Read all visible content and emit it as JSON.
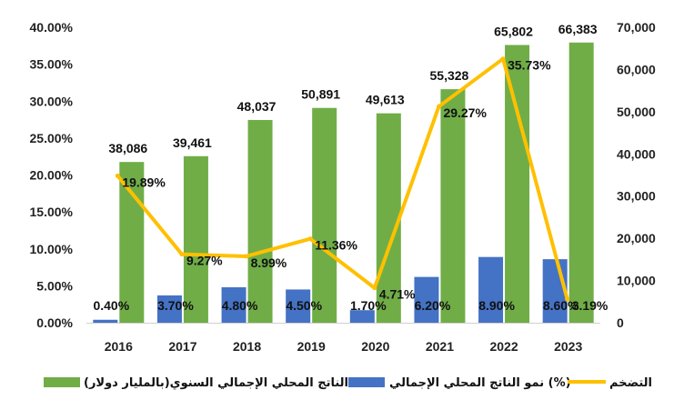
{
  "chart_data": {
    "type": "bar",
    "categories": [
      "2016",
      "2017",
      "2018",
      "2019",
      "2020",
      "2021",
      "2022",
      "2023"
    ],
    "series": [
      {
        "name": "الناتج المحلي الإجمالي السنوي(بالمليار دولار)",
        "type": "bar",
        "axis": "right",
        "color": "#70AD47",
        "values": [
          38086,
          39461,
          48037,
          50891,
          49613,
          55328,
          65802,
          66383
        ],
        "labels": [
          "38,086",
          "39,461",
          "48,037",
          "50,891",
          "49,613",
          "55,328",
          "65,802",
          "66,383"
        ]
      },
      {
        "name": "نمو الناتج المحلي الإجمالي (%)",
        "type": "bar",
        "axis": "left",
        "color": "#4472C4",
        "values": [
          0.4,
          3.7,
          4.8,
          4.5,
          1.7,
          6.2,
          8.9,
          8.6
        ],
        "labels": [
          "0.40%",
          "3.70%",
          "4.80%",
          "4.50%",
          "1.70%",
          "6.20%",
          "8.90%",
          "8.60%"
        ]
      },
      {
        "name": "التضخم",
        "type": "line",
        "axis": "left",
        "color": "#FFC000",
        "values": [
          19.89,
          9.27,
          8.99,
          11.36,
          4.71,
          29.27,
          35.73,
          3.19
        ],
        "labels": [
          "19.89%",
          "9.27%",
          "8.99%",
          "11.36%",
          "4.71%",
          "29.27%",
          "35.73%",
          "3.19%"
        ]
      }
    ],
    "y_left": {
      "lim": [
        0,
        40
      ],
      "ticks": [
        "0.00%",
        "5.00%",
        "10.00%",
        "15.00%",
        "20.00%",
        "25.00%",
        "30.00%",
        "35.00%",
        "40.00%"
      ]
    },
    "y_right": {
      "lim": [
        0,
        70000
      ],
      "ticks": [
        "0",
        "10,000",
        "20,000",
        "30,000",
        "40,000",
        "50,000",
        "60,000",
        "70,000"
      ]
    },
    "grid": false,
    "legend_position": "bottom"
  }
}
